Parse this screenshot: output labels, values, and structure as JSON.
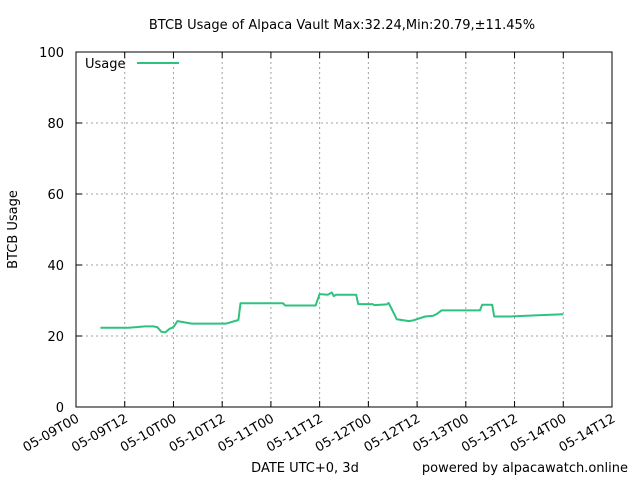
{
  "chart_data": {
    "type": "line",
    "title": "BTCB Usage of Alpaca Vault Max:32.24,Min:20.79,±11.45%",
    "xlabel": "DATE UTC+0, 3d",
    "ylabel": "BTCB Usage",
    "footer": "powered by alpacawatch.online",
    "grid": true,
    "legend_position": "top-left",
    "ylim": [
      0,
      100
    ],
    "yticks": [
      0,
      20,
      40,
      60,
      80,
      100
    ],
    "ytick_labels": [
      "0",
      "20",
      "40",
      "60",
      "80",
      "100"
    ],
    "xlim": [
      "2022-05-09T00:00",
      "2022-05-14T12:00"
    ],
    "xticks": [
      "2022-05-09T00:00",
      "2022-05-09T12:00",
      "2022-05-10T00:00",
      "2022-05-10T12:00",
      "2022-05-11T00:00",
      "2022-05-11T12:00",
      "2022-05-12T00:00",
      "2022-05-12T12:00",
      "2022-05-13T00:00",
      "2022-05-13T12:00",
      "2022-05-14T00:00",
      "2022-05-14T12:00"
    ],
    "xtick_labels": [
      "05-09T00",
      "05-09T12",
      "05-10T00",
      "05-10T12",
      "05-11T00",
      "05-11T12",
      "05-12T00",
      "05-12T12",
      "05-13T00",
      "05-13T12",
      "05-14T00",
      "05-14T12"
    ],
    "series": [
      {
        "name": "Usage",
        "color": "#2ec27e",
        "x": [
          "2022-05-09T06:00",
          "2022-05-09T13:00",
          "2022-05-09T17:00",
          "2022-05-09T19:00",
          "2022-05-09T20:00",
          "2022-05-09T21:00",
          "2022-05-09T22:00",
          "2022-05-09T23:00",
          "2022-05-10T00:00",
          "2022-05-10T01:00",
          "2022-05-10T04:30",
          "2022-05-10T13:00",
          "2022-05-10T16:00",
          "2022-05-10T16:30",
          "2022-05-11T03:00",
          "2022-05-11T03:30",
          "2022-05-11T11:00",
          "2022-05-11T12:00",
          "2022-05-11T14:00",
          "2022-05-11T15:00",
          "2022-05-11T15:30",
          "2022-05-11T16:00",
          "2022-05-11T21:00",
          "2022-05-11T21:30",
          "2022-05-12T01:00",
          "2022-05-12T01:30",
          "2022-05-12T04:30",
          "2022-05-12T05:00",
          "2022-05-12T07:00",
          "2022-05-12T10:00",
          "2022-05-12T11:00",
          "2022-05-12T14:00",
          "2022-05-12T16:00",
          "2022-05-12T17:00",
          "2022-05-12T18:00",
          "2022-05-13T03:30",
          "2022-05-13T04:00",
          "2022-05-13T06:30",
          "2022-05-13T07:00",
          "2022-05-13T11:00",
          "2022-05-13T17:00",
          "2022-05-14T00:00"
        ],
        "values": [
          22.3,
          22.3,
          22.7,
          22.7,
          22.5,
          21.2,
          21.0,
          22.0,
          22.5,
          24.2,
          23.5,
          23.5,
          24.5,
          29.2,
          29.2,
          28.6,
          28.6,
          31.8,
          31.6,
          32.24,
          31.2,
          31.6,
          31.6,
          29.0,
          29.0,
          28.7,
          28.9,
          29.3,
          24.7,
          24.2,
          24.4,
          25.5,
          25.7,
          26.3,
          27.2,
          27.2,
          28.8,
          28.8,
          25.5,
          25.5,
          25.8,
          26.1
        ]
      }
    ]
  }
}
